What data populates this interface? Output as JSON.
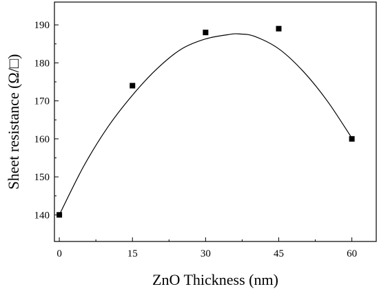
{
  "chart_data": {
    "type": "scatter",
    "title": "",
    "xlabel": "ZnO Thickness (nm)",
    "ylabel": "Sheet resistance (Ω/□)",
    "xlim": [
      -1,
      65
    ],
    "ylim": [
      133,
      196
    ],
    "xticks": [
      0,
      15,
      30,
      45,
      60
    ],
    "yticks": [
      140,
      150,
      160,
      170,
      180,
      190
    ],
    "grid": false,
    "legend": "none",
    "series": [
      {
        "marker": "square",
        "color": "#000000",
        "x": [
          0,
          15,
          30,
          45,
          60
        ],
        "y": [
          140,
          174,
          188,
          189,
          160
        ]
      }
    ],
    "fit_curve": {
      "style": "smooth line",
      "color": "#000000",
      "x": [
        0,
        5,
        10,
        15,
        20,
        25,
        30,
        35,
        37,
        40,
        45,
        50,
        55,
        60
      ],
      "y": [
        140,
        152.8,
        163.2,
        171.5,
        178.4,
        183.6,
        186.3,
        187.5,
        187.6,
        187.0,
        183.7,
        177.8,
        169.9,
        160.2
      ]
    }
  }
}
